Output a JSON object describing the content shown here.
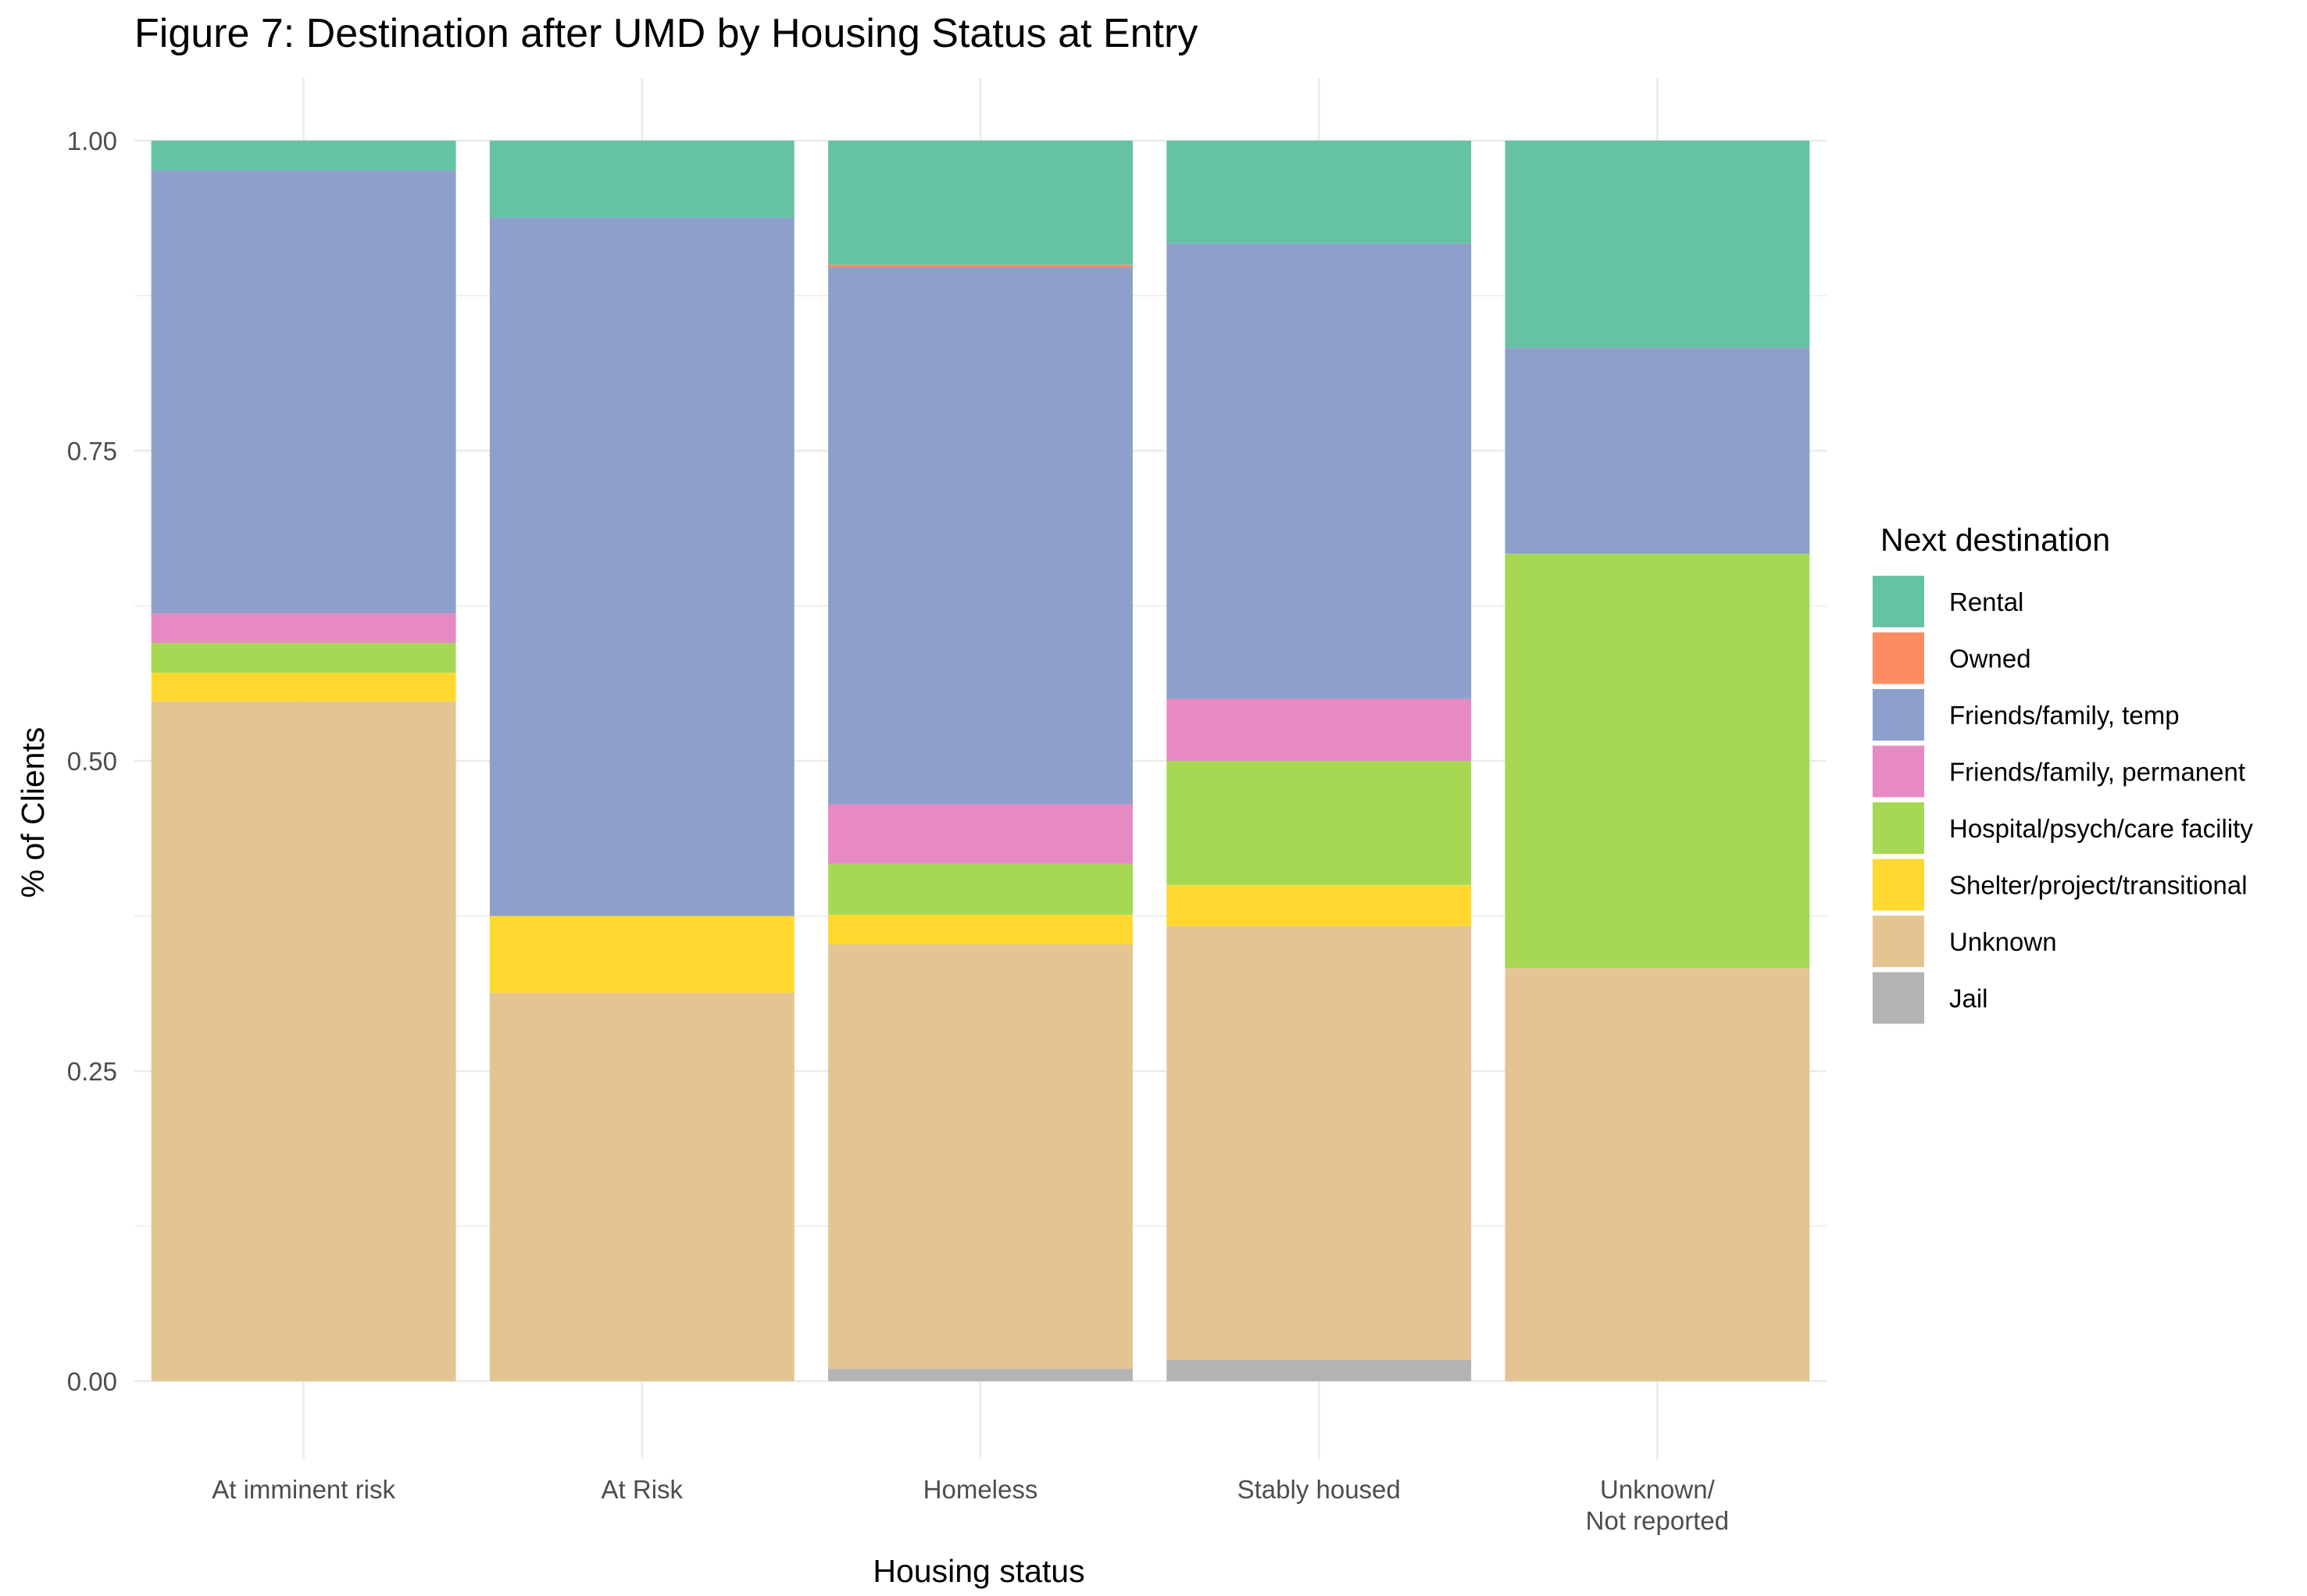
{
  "chart_data": {
    "type": "bar",
    "stacked": true,
    "normalized": true,
    "title": "Figure 7: Destination after UMD by Housing Status at Entry",
    "xlabel": "Housing status",
    "ylabel": "% of Clients",
    "ylim": [
      0,
      1
    ],
    "yticks": [
      "0.00",
      "0.25",
      "0.50",
      "0.75",
      "1.00"
    ],
    "categories": [
      "At imminent risk",
      "At Risk",
      "Homeless",
      "Stably housed",
      "Unknown/\nNot reported"
    ],
    "legend": {
      "title": "Next destination",
      "position": "right"
    },
    "grid": true,
    "series": [
      {
        "name": "Rental",
        "color": "#66C2A5",
        "values": [
          0.024,
          0.062,
          0.1,
          0.083,
          0.167
        ]
      },
      {
        "name": "Owned",
        "color": "#FC8D62",
        "values": [
          0,
          0,
          0.002,
          0,
          0
        ]
      },
      {
        "name": "Friends/family, temp",
        "color": "#8DA0CB",
        "values": [
          0.357,
          0.563,
          0.433,
          0.367,
          0.166
        ]
      },
      {
        "name": "Friends/family, permanent",
        "color": "#E78AC3",
        "values": [
          0.024,
          0,
          0.048,
          0.05,
          0
        ]
      },
      {
        "name": "Hospital/psych/care facility",
        "color": "#A6D854",
        "values": [
          0.024,
          0,
          0.041,
          0.1,
          0.334
        ]
      },
      {
        "name": "Shelter/project/transitional",
        "color": "#FFD92F",
        "values": [
          0.023,
          0.062,
          0.024,
          0.033,
          0
        ]
      },
      {
        "name": "Unknown",
        "color": "#E5C494",
        "values": [
          0.548,
          0.313,
          0.342,
          0.35,
          0.333
        ]
      },
      {
        "name": "Jail",
        "color": "#B3B3B3",
        "values": [
          0,
          0,
          0.01,
          0.017,
          0
        ]
      }
    ]
  }
}
